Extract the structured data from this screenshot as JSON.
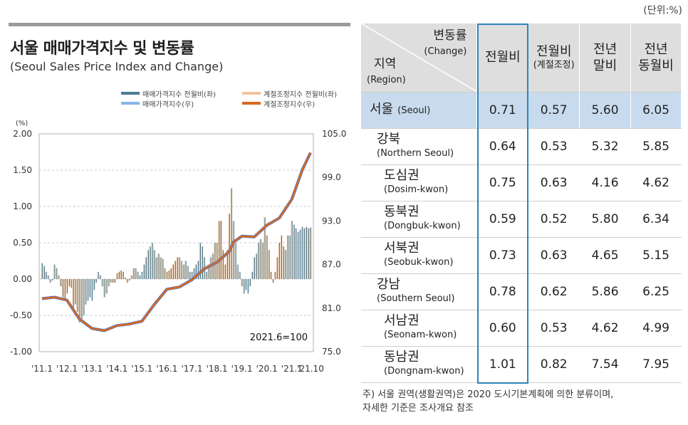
{
  "title_ko": "서울 매매가격지수 및 변동률",
  "title_en": "(Seoul Sales Price Index and Change)",
  "legend": {
    "left": [
      {
        "label": "매매가격지수 전월비(좌)",
        "color": "#4a7a92"
      },
      {
        "label": "매매가격지수(우)",
        "color": "#8ab4e8"
      }
    ],
    "right": [
      {
        "label": "계절조정지수 전월비(좌)",
        "color": "#f2c49a"
      },
      {
        "label": "계절조정지수(우)",
        "color": "#d9691f"
      }
    ]
  },
  "chart_data": {
    "type": "bar+line",
    "left_axis_unit": "(%)",
    "left_ticks": [
      "2.00",
      "1.50",
      "1.00",
      "0.50",
      "0.00",
      "-0.50",
      "-1.00"
    ],
    "left_range": [
      -1.0,
      2.0
    ],
    "right_ticks": [
      "105.0",
      "99.0",
      "93.0",
      "87.0",
      "81.0",
      "75.0"
    ],
    "right_range": [
      75.0,
      105.0
    ],
    "x_tick_labels": [
      "'11.1",
      "'12.1",
      "'13.1",
      "'14.1",
      "'15.1",
      "'16.1",
      "'17.1",
      "'18.1",
      "'19.1",
      "'20.1",
      "'21.1",
      "'21.10"
    ],
    "annotation": "2021.6=100",
    "series_index_line": {
      "name": "매매가격지수(우)",
      "x": [
        "2011-01",
        "2011-07",
        "2012-01",
        "2012-07",
        "2013-01",
        "2013-07",
        "2014-01",
        "2014-07",
        "2015-01",
        "2015-07",
        "2016-01",
        "2016-07",
        "2017-01",
        "2017-07",
        "2018-01",
        "2018-07",
        "2018-09",
        "2019-01",
        "2019-07",
        "2020-01",
        "2020-07",
        "2021-01",
        "2021-06",
        "2021-10"
      ],
      "y": [
        82.3,
        82.5,
        82.1,
        79.5,
        78.2,
        77.9,
        78.6,
        78.8,
        79.2,
        81.5,
        83.6,
        83.9,
        84.9,
        86.4,
        87.3,
        88.8,
        90.1,
        90.9,
        90.8,
        92.4,
        93.4,
        96.0,
        100.0,
        102.4
      ]
    },
    "series_mom_bars": {
      "name": "매매가격지수 전월비(좌)",
      "x": [
        "2011-01",
        "2011-02",
        "2011-03",
        "2011-04",
        "2011-05",
        "2011-06",
        "2011-07",
        "2011-08",
        "2011-09",
        "2011-10",
        "2011-11",
        "2011-12",
        "2012-01",
        "2012-02",
        "2012-03",
        "2012-04",
        "2012-05",
        "2012-06",
        "2012-07",
        "2012-08",
        "2012-09",
        "2012-10",
        "2012-11",
        "2012-12",
        "2013-01",
        "2013-02",
        "2013-03",
        "2013-04",
        "2013-05",
        "2013-06",
        "2013-07",
        "2013-08",
        "2013-09",
        "2013-10",
        "2013-11",
        "2013-12",
        "2014-01",
        "2014-02",
        "2014-03",
        "2014-04",
        "2014-05",
        "2014-06",
        "2014-07",
        "2014-08",
        "2014-09",
        "2014-10",
        "2014-11",
        "2014-12",
        "2015-01",
        "2015-02",
        "2015-03",
        "2015-04",
        "2015-05",
        "2015-06",
        "2015-07",
        "2015-08",
        "2015-09",
        "2015-10",
        "2015-11",
        "2015-12",
        "2016-01",
        "2016-02",
        "2016-03",
        "2016-04",
        "2016-05",
        "2016-06",
        "2016-07",
        "2016-08",
        "2016-09",
        "2016-10",
        "2016-11",
        "2016-12",
        "2017-01",
        "2017-02",
        "2017-03",
        "2017-04",
        "2017-05",
        "2017-06",
        "2017-07",
        "2017-08",
        "2017-09",
        "2017-10",
        "2017-11",
        "2017-12",
        "2018-01",
        "2018-02",
        "2018-03",
        "2018-04",
        "2018-05",
        "2018-06",
        "2018-07",
        "2018-08",
        "2018-09",
        "2018-10",
        "2018-11",
        "2018-12",
        "2019-01",
        "2019-02",
        "2019-03",
        "2019-04",
        "2019-05",
        "2019-06",
        "2019-07",
        "2019-08",
        "2019-09",
        "2019-10",
        "2019-11",
        "2019-12",
        "2020-01",
        "2020-02",
        "2020-03",
        "2020-04",
        "2020-05",
        "2020-06",
        "2020-07",
        "2020-08",
        "2020-09",
        "2020-10",
        "2020-11",
        "2020-12",
        "2021-01",
        "2021-02",
        "2021-03",
        "2021-04",
        "2021-05",
        "2021-06",
        "2021-07",
        "2021-08",
        "2021-09",
        "2021-10"
      ],
      "values": [
        0.22,
        0.18,
        0.1,
        0.05,
        -0.05,
        -0.02,
        0.2,
        0.15,
        0.05,
        -0.1,
        -0.25,
        -0.3,
        -0.2,
        -0.1,
        -0.12,
        -0.4,
        -0.35,
        -0.45,
        -0.6,
        -0.55,
        -0.5,
        -0.35,
        -0.3,
        -0.25,
        -0.3,
        -0.15,
        -0.05,
        0.1,
        0.05,
        -0.1,
        -0.25,
        -0.2,
        -0.1,
        -0.05,
        -0.05,
        -0.05,
        0.08,
        0.1,
        0.12,
        0.1,
        0.02,
        -0.05,
        -0.02,
        0.05,
        0.15,
        0.15,
        0.1,
        0.05,
        0.1,
        0.2,
        0.3,
        0.4,
        0.45,
        0.5,
        0.4,
        0.3,
        0.35,
        0.3,
        0.28,
        0.15,
        0.1,
        0.12,
        0.15,
        0.2,
        0.25,
        0.3,
        0.3,
        0.25,
        0.2,
        0.25,
        0.18,
        0.1,
        0.1,
        0.15,
        0.2,
        0.25,
        0.5,
        0.45,
        0.3,
        0.1,
        0.2,
        0.3,
        0.35,
        0.5,
        0.5,
        0.8,
        0.8,
        0.4,
        0.2,
        0.4,
        0.9,
        1.25,
        0.8,
        0.5,
        0.2,
        0.1,
        -0.1,
        -0.2,
        -0.15,
        -0.2,
        -0.1,
        0.1,
        0.3,
        0.35,
        0.5,
        0.55,
        0.5,
        0.85,
        0.6,
        0.4,
        0.1,
        -0.05,
        0.1,
        0.3,
        0.5,
        0.6,
        0.45,
        0.4,
        0.6,
        0.6,
        0.8,
        0.75,
        0.7,
        0.65,
        0.68,
        0.72,
        0.7,
        0.72,
        0.7,
        0.71
      ]
    }
  },
  "table": {
    "unit": "(단위:%)",
    "corner": {
      "top_ko": "변동률",
      "top_en": "(Change)",
      "bottom_ko": "지역",
      "bottom_en": "(Region)"
    },
    "columns": [
      {
        "label": "전월비",
        "sub": ""
      },
      {
        "label": "전월비",
        "sub": "(계절조정)"
      },
      {
        "label": "전년\n말비",
        "sub": ""
      },
      {
        "label": "전년\n동월비",
        "sub": ""
      }
    ],
    "rows": [
      {
        "ko": "서울",
        "en": "(Seoul)",
        "indent": 0,
        "inline": true,
        "values": [
          "0.71",
          "0.57",
          "5.60",
          "6.05"
        ]
      },
      {
        "ko": "강북",
        "en": "(Northern Seoul)",
        "indent": 1,
        "values": [
          "0.64",
          "0.53",
          "5.32",
          "5.85"
        ]
      },
      {
        "ko": "도심권",
        "en": "(Dosim-kwon)",
        "indent": 2,
        "values": [
          "0.75",
          "0.63",
          "4.16",
          "4.62"
        ]
      },
      {
        "ko": "동북권",
        "en": "(Dongbuk-kwon)",
        "indent": 2,
        "values": [
          "0.59",
          "0.52",
          "5.80",
          "6.34"
        ]
      },
      {
        "ko": "서북권",
        "en": "(Seobuk-kwon)",
        "indent": 2,
        "values": [
          "0.73",
          "0.63",
          "4.65",
          "5.15"
        ]
      },
      {
        "ko": "강남",
        "en": "(Southern Seoul)",
        "indent": 1,
        "values": [
          "0.78",
          "0.62",
          "5.86",
          "6.25"
        ]
      },
      {
        "ko": "서남권",
        "en": "(Seonam-kwon)",
        "indent": 2,
        "values": [
          "0.60",
          "0.53",
          "4.62",
          "4.99"
        ]
      },
      {
        "ko": "동남권",
        "en": "(Dongnam-kwon)",
        "indent": 2,
        "values": [
          "1.01",
          "0.82",
          "7.54",
          "7.95"
        ]
      }
    ]
  },
  "footnote": [
    "주) 서울 권역(생활권역)은 2020 도시기본계획에 의한 분류이며,",
    "자세한 기준은 조사개요 참조"
  ]
}
